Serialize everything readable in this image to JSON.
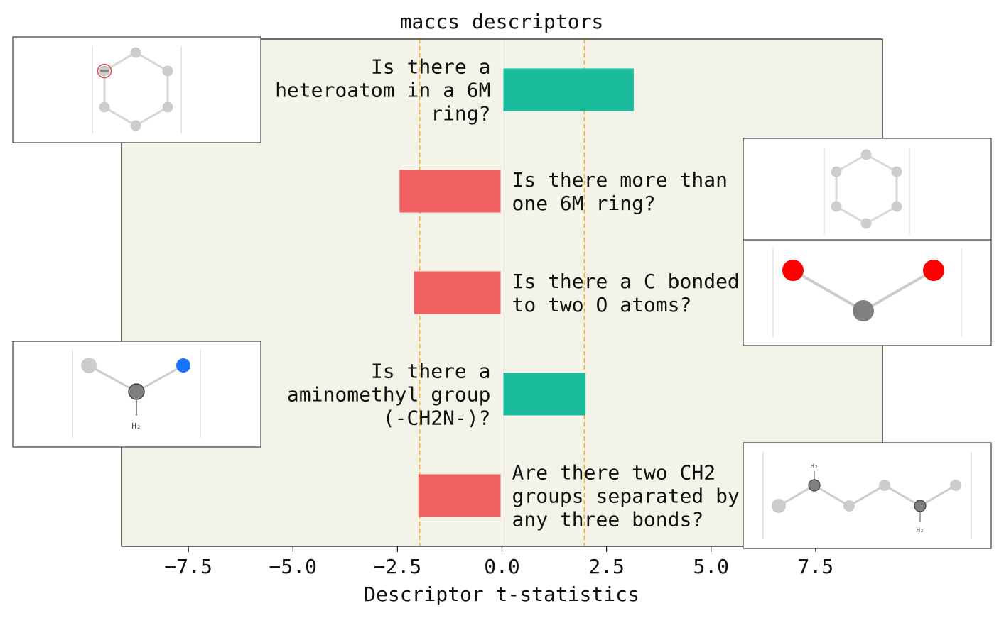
{
  "chart_data": {
    "type": "bar",
    "orientation": "horizontal",
    "title": "maccs descriptors",
    "xlabel": "Descriptor t-statistics",
    "ylabel": "",
    "xlim": [
      -9.1,
      9.1
    ],
    "xticks": [
      -7.5,
      -5.0,
      -2.5,
      0.0,
      2.5,
      5.0,
      7.5
    ],
    "xtick_labels": [
      "−7.5",
      "−5.0",
      "−2.5",
      "0.0",
      "2.5",
      "5.0",
      "7.5"
    ],
    "threshold_lines": [
      -1.97,
      1.97
    ],
    "grid": false,
    "categories": [
      "Is there a heteroatom in a 6M ring?",
      "Is there more than one 6M ring?",
      "Is there a C bonded to two O atoms?",
      "Is there a aminomethyl group (-CH2N-)?",
      "Are there two CH2 groups separated by any three bonds?"
    ],
    "category_label_lines": [
      [
        "Is there a",
        "heteroatom in a 6M",
        "ring?"
      ],
      [
        "Is there more than",
        "one 6M ring?"
      ],
      [
        "Is there a C bonded",
        "to two O atoms?"
      ],
      [
        "Is there a",
        "aminomethyl group",
        "(-CH2N-)?"
      ],
      [
        "Are there two CH2",
        "groups separated by",
        "any three bonds?"
      ]
    ],
    "values": [
      3.15,
      -2.45,
      -2.1,
      2.0,
      -2.0
    ]
  },
  "colors": {
    "positive": "#1abc9c",
    "negative": "#f06060",
    "threshold": "#f5a623",
    "plot_background": "#f3f3e8",
    "zero_line": "#888888"
  },
  "molecule_images": [
    {
      "name": "pyridine-fragment",
      "atoms_colored": [
        "heteroatom-marker"
      ]
    },
    {
      "name": "six-membered-ring"
    },
    {
      "name": "carbon-two-oxygen",
      "atoms_colored": [
        "oxygen",
        "oxygen"
      ]
    },
    {
      "name": "aminomethyl",
      "labels": [
        "H₂"
      ]
    },
    {
      "name": "two-ch2-chain",
      "labels": [
        "H₂",
        "H₂"
      ]
    }
  ]
}
